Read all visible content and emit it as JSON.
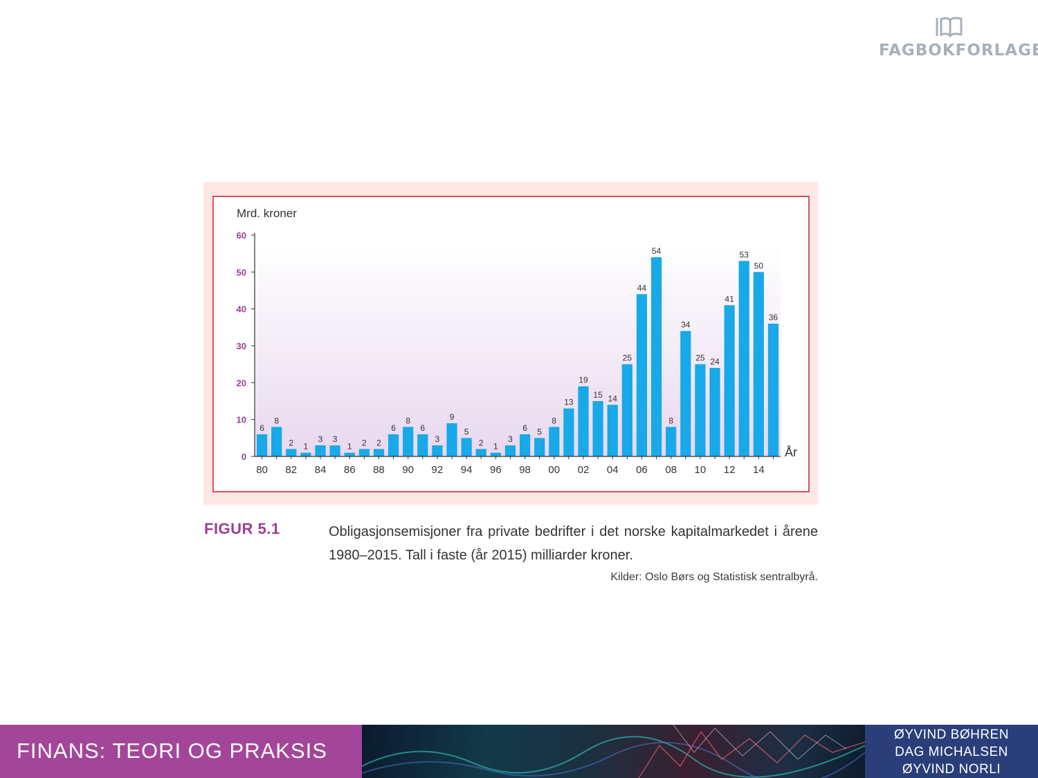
{
  "publisher": {
    "name": "FAGBOKFORLAGET",
    "logo_icon": "book-logo-icon"
  },
  "figure": {
    "label": "FIGUR 5.1",
    "caption": "Obligasjonsemisjoner fra private bedrifter i det norske kapitalmarkedet i årene 1980–2015. Tall i faste (år 2015) milliarder kroner.",
    "source": "Kilder: Oslo Børs og Statistisk sentralbyrå."
  },
  "chart_data": {
    "type": "bar",
    "title": "",
    "ylabel": "Mrd. kroner",
    "xlabel": "År",
    "ylim": [
      0,
      60
    ],
    "yticks": [
      0,
      10,
      20,
      30,
      40,
      50,
      60
    ],
    "categories": [
      "80",
      "81",
      "82",
      "83",
      "84",
      "85",
      "86",
      "87",
      "88",
      "89",
      "90",
      "91",
      "92",
      "93",
      "94",
      "95",
      "96",
      "97",
      "98",
      "99",
      "00",
      "01",
      "02",
      "03",
      "04",
      "05",
      "06",
      "07",
      "08",
      "09",
      "10",
      "11",
      "12",
      "13",
      "14",
      "15"
    ],
    "xtick_labels": [
      "80",
      "82",
      "84",
      "86",
      "88",
      "90",
      "92",
      "94",
      "96",
      "98",
      "00",
      "02",
      "04",
      "06",
      "08",
      "10",
      "12",
      "14"
    ],
    "values": [
      6,
      8,
      2,
      1,
      3,
      3,
      1,
      2,
      2,
      6,
      8,
      6,
      3,
      9,
      5,
      2,
      1,
      3,
      6,
      5,
      8,
      13,
      19,
      15,
      14,
      25,
      44,
      54,
      8,
      34,
      25,
      24,
      41,
      53,
      50,
      36
    ],
    "grid": false,
    "colors": {
      "bar": "#17a9e8",
      "ytick": "#9b3f96"
    }
  },
  "footer": {
    "title": "FINANS: TEORI OG PRAKSIS",
    "authors": [
      "ØYVIND BØHREN",
      "DAG MICHALSEN",
      "ØYVIND NORLI"
    ]
  }
}
